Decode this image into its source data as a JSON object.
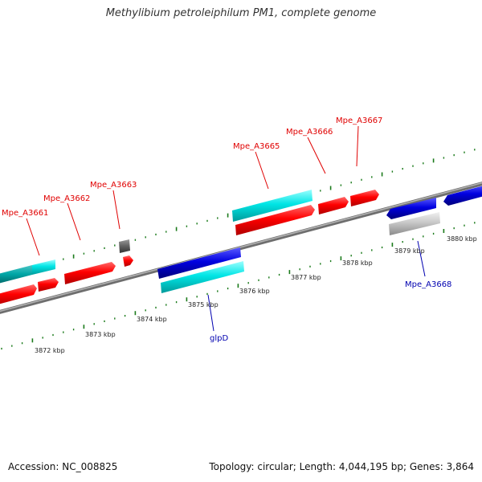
{
  "title": "Methylibium petroleiphilum PM1, complete genome",
  "footer": {
    "accession": "Accession: NC_008825",
    "summary": "Topology: circular; Length: 4,044,195 bp; Genes: 3,864"
  },
  "colors": {
    "forward_cds": "#ff0000",
    "reverse_cds": "#0000e0",
    "forward_rna": "#00e5e5",
    "reverse_rna": "#c8c8c8",
    "backbone": "#808080",
    "tick": "#1a7a1a",
    "forward_label": "#e00000",
    "reverse_label": "#0000b0"
  },
  "scale_labels": [
    "3872 kbp",
    "3873 kbp",
    "3874 kbp",
    "3875 kbp",
    "3876 kbp",
    "3877 kbp",
    "3878 kbp",
    "3879 kbp",
    "3880 kbp"
  ],
  "gene_labels": {
    "mpe_a3661": "Mpe_A3661",
    "mpe_a3662": "Mpe_A3662",
    "mpe_a3663": "Mpe_A3663",
    "mpe_a3665": "Mpe_A3665",
    "mpe_a3666": "Mpe_A3666",
    "mpe_a3667": "Mpe_A3667",
    "mpe_a3668": "Mpe_A3668",
    "glpd": "glpD"
  }
}
